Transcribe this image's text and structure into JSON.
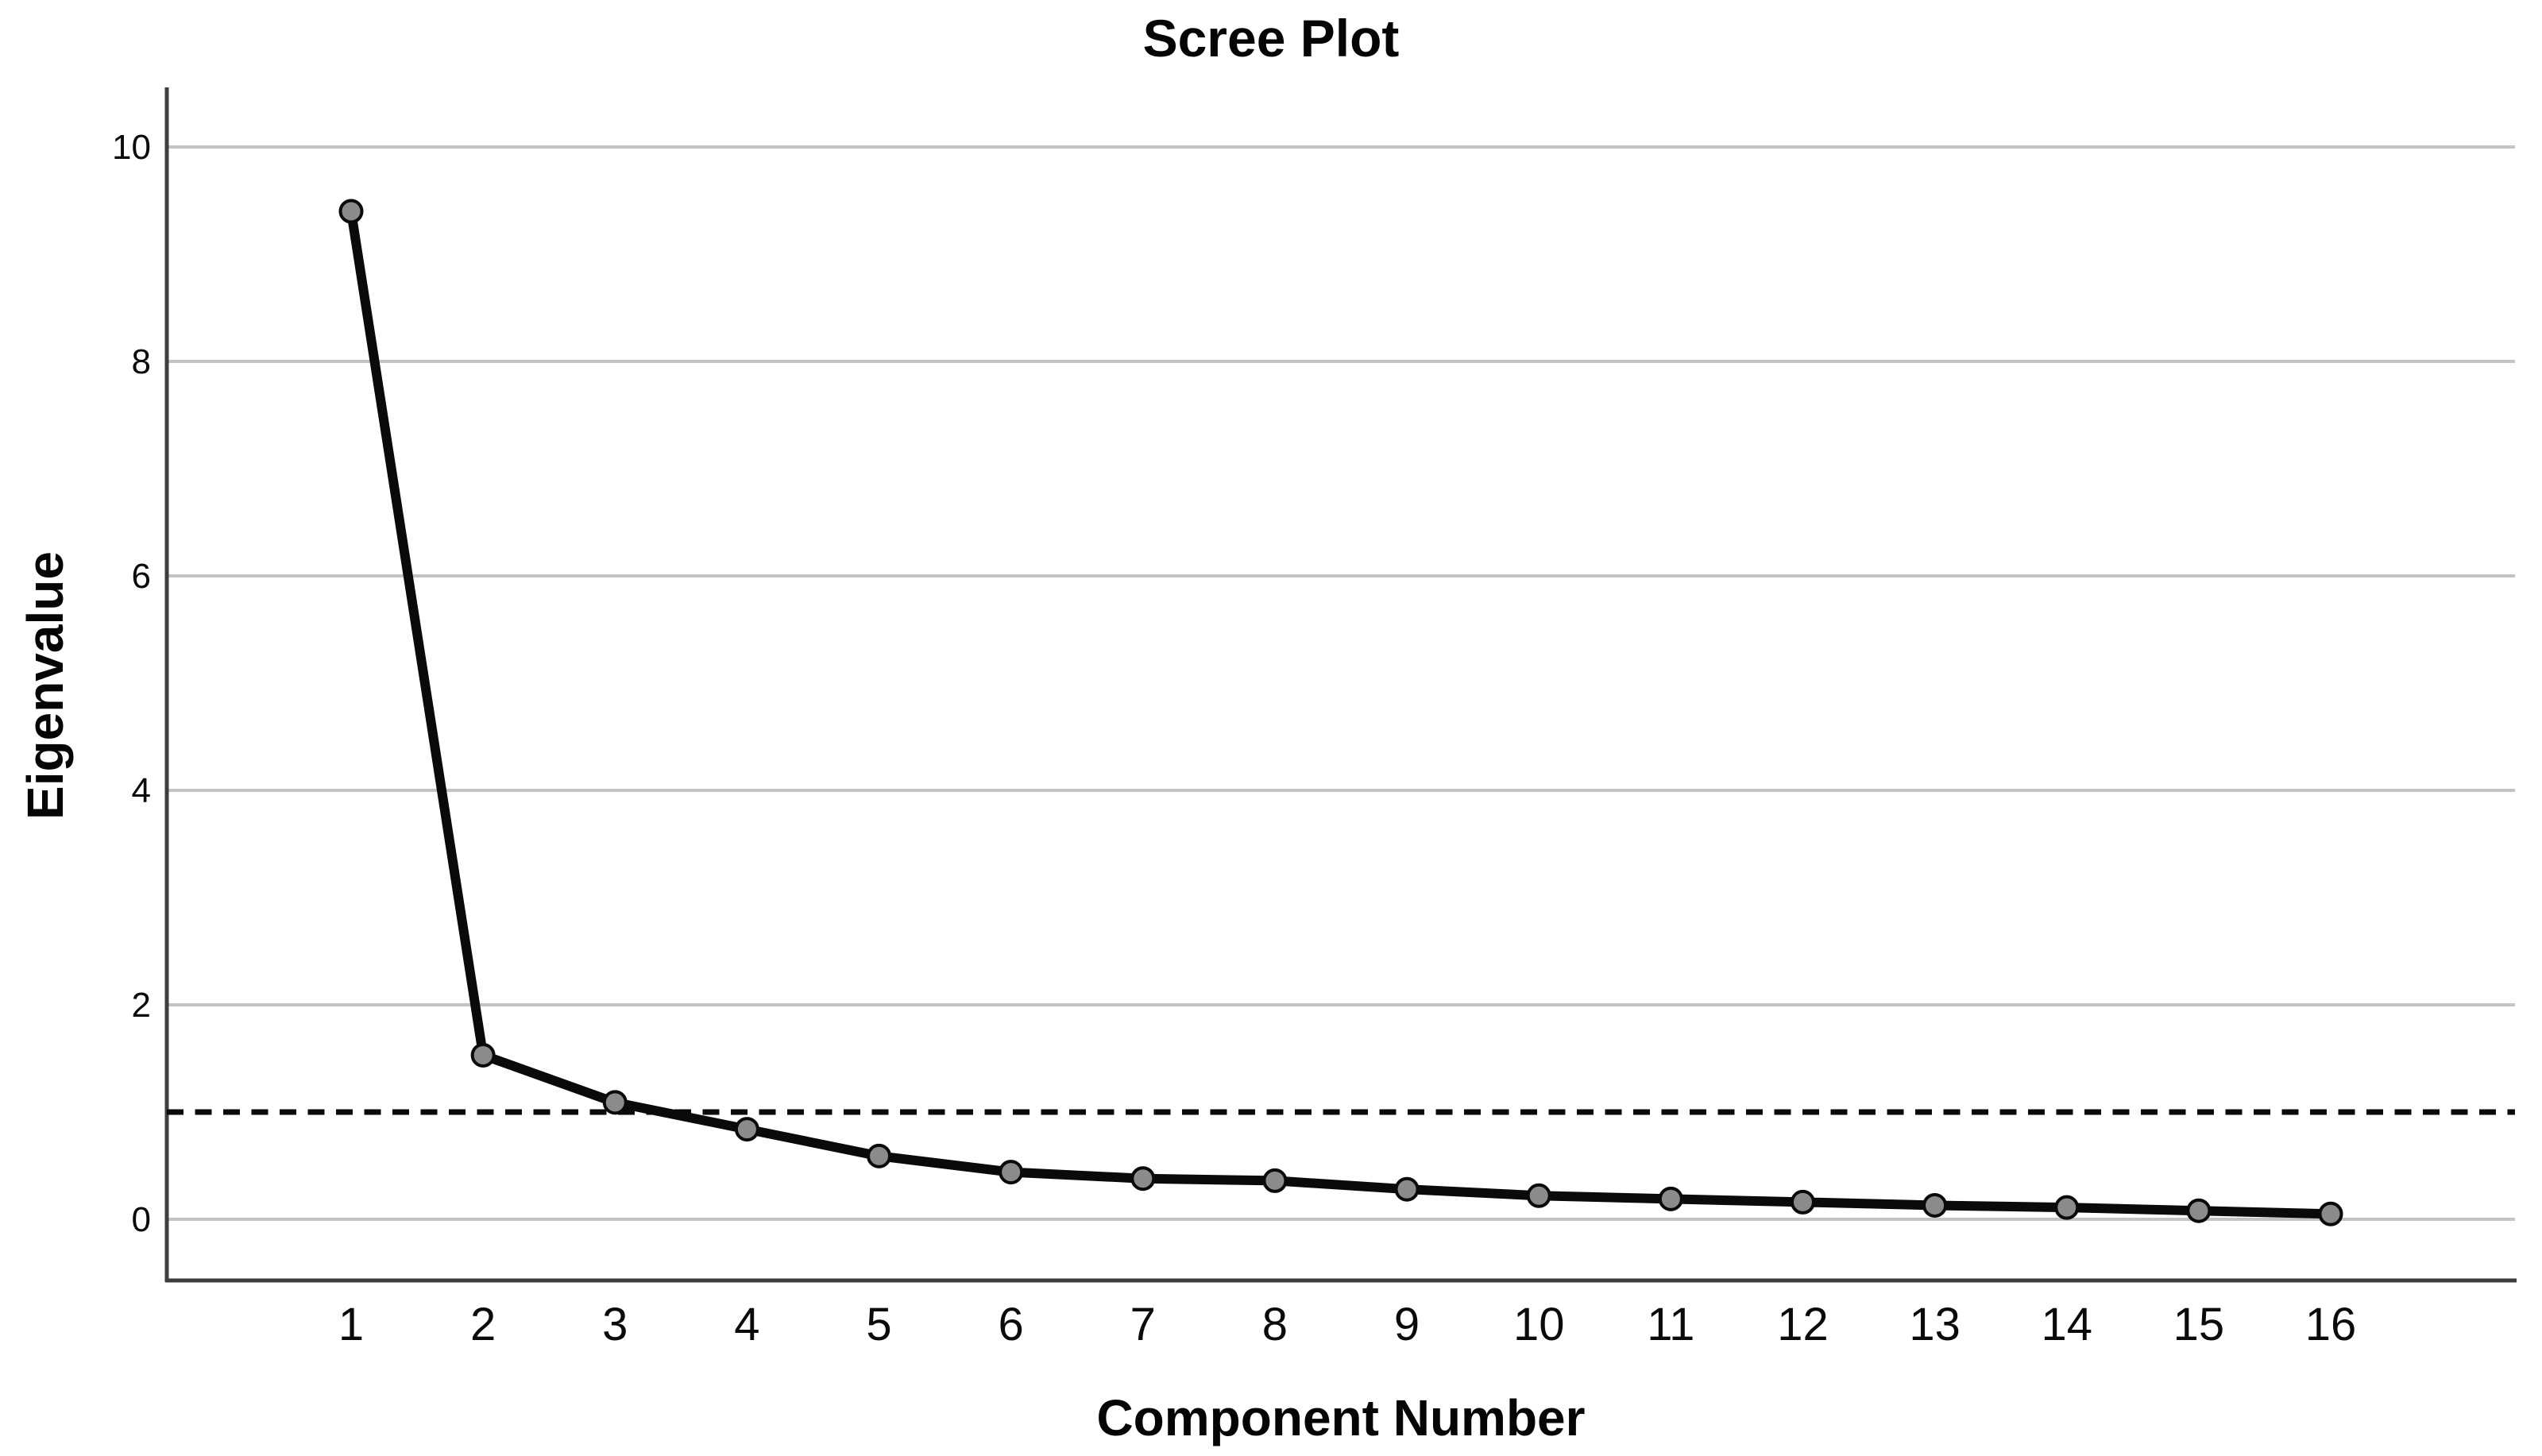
{
  "chart_data": {
    "type": "line",
    "title": "Scree Plot",
    "xlabel": "Component Number",
    "ylabel": "Eigenvalue",
    "categories": [
      1,
      2,
      3,
      4,
      5,
      6,
      7,
      8,
      9,
      10,
      11,
      12,
      13,
      14,
      15,
      16
    ],
    "series": [
      {
        "name": "Eigenvalues",
        "values": [
          9.4,
          1.53,
          1.09,
          0.84,
          0.59,
          0.44,
          0.38,
          0.36,
          0.28,
          0.22,
          0.19,
          0.16,
          0.13,
          0.11,
          0.08,
          0.05
        ]
      }
    ],
    "yticks": [
      0,
      2,
      4,
      6,
      8,
      10
    ],
    "xticks": [
      "1",
      "2",
      "3",
      "4",
      "5",
      "6",
      "7",
      "8",
      "9",
      "10",
      "11",
      "12",
      "13",
      "14",
      "15",
      "16"
    ],
    "ylim": [
      -0.57,
      10.55
    ],
    "grid": "horizontal-only",
    "legend": "none",
    "reference_line": {
      "value": 1,
      "style": "dashed",
      "label": "eigenvalue-1-kaiser-criterion"
    },
    "colors": {
      "line": "#0a0a0a",
      "marker_fill": "#8b8b8b",
      "marker_edge": "#0a0a0a",
      "gridline": "#c3c3c3",
      "axis_line": "#3d3d3d",
      "reference_line": "#0a0a0a",
      "background": "#ffffff",
      "text": "#050505"
    }
  }
}
